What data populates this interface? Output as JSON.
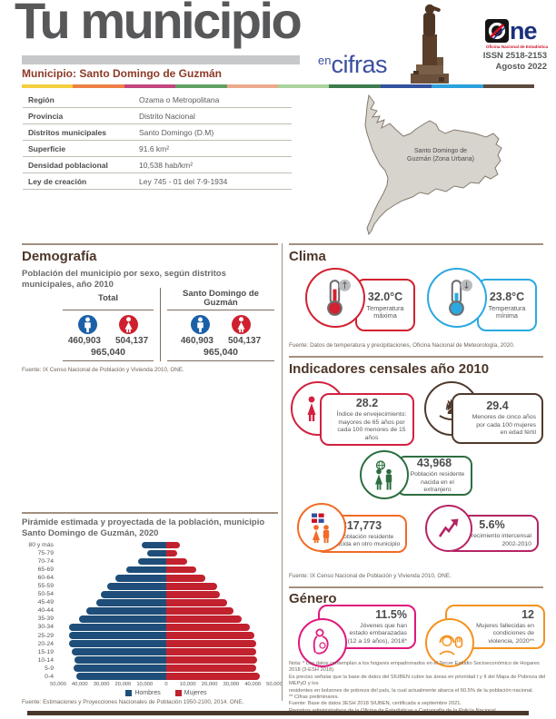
{
  "header": {
    "title": "Tu municipio",
    "subtitle_prefix": "en",
    "subtitle": "cifras",
    "municipio": "Municipio: Santo Domingo de Guzmán",
    "issn": "ISSN  2518-2153",
    "date": "Agosto 2022",
    "logo_text": "ne",
    "logo_caption": "Oficina Nacional de Estadística",
    "stripe_colors": [
      "#f3cf3e",
      "#ee7f45",
      "#c34680",
      "#609f63",
      "#ecaa8c",
      "#abd39d",
      "#3d7b4d",
      "#33519f",
      "#2ba1de",
      "#5c4a3e"
    ]
  },
  "info_table": {
    "rows": [
      {
        "label": "Región",
        "value": "Ozama o Metropolitana"
      },
      {
        "label": "Provincia",
        "value": "Distrito Nacional"
      },
      {
        "label": "Distritos municipales",
        "value": "Santo Domingo (D.M)"
      },
      {
        "label": "Superficie",
        "value": "91.6 km²"
      },
      {
        "label": "Densidad poblacional",
        "value": "10,538 hab/km²"
      },
      {
        "label": "Ley de creación",
        "value": "Ley 745 - 01 del 7-9-1934"
      }
    ]
  },
  "map": {
    "label_line1": "Santo Domingo de",
    "label_line2": "Guzmán (Zona Urbana)"
  },
  "demografia": {
    "title": "Demografía",
    "subtitle": "Población del municipio por sexo, según distritos municipales, año 2010",
    "columns": [
      {
        "header": "Total",
        "male": "460,903",
        "female": "504,137",
        "total": "965,040"
      },
      {
        "header": "Santo Domingo de Guzmán",
        "male": "460,903",
        "female": "504,137",
        "total": "965,040"
      }
    ],
    "male_color": "#1b5fa6",
    "female_color": "#cf2030",
    "fuente": "Fuente: IX Censo Nacional de Población y Vivienda 2010, ONE."
  },
  "clima": {
    "title": "Clima",
    "cards": [
      {
        "icon": "thermometer-up-icon",
        "value": "32.0°C",
        "label": "Temperatura máxima",
        "color": "#d22130"
      },
      {
        "icon": "thermometer-down-icon",
        "value": "23.8°C",
        "label": "Temperatura mínima",
        "color": "#2aa9e0"
      }
    ],
    "fuente": "Fuente: Datos de temperatura y precipitaciones, Oficina Nacional de Meteorología, 2020."
  },
  "indicadores": {
    "title": "Indicadores censales año 2010",
    "cards": [
      {
        "icon": "elderly-couple-icon",
        "value": "28.2",
        "label": "Índice de envejecimiento: mayores de 65 años por cada 100 menores de 15 años",
        "color": "#d22140"
      },
      {
        "icon": "rocking-horse-icon",
        "value": "29.4",
        "label": "Menores de cinco años por cada 100 mujeres en edad fértil",
        "color": "#503a2c"
      },
      {
        "icon": "people-globe-icon",
        "value": "43,968",
        "label": "Población residente nacida en el extranjero",
        "color": "#2c6e3f"
      },
      {
        "icon": "flag-people-icon",
        "value": "317,773",
        "label": "Población residente nacida en otro municipio",
        "color": "#f26b28"
      },
      {
        "icon": "growth-arrow-icon",
        "value": "5.6%",
        "label": "Crecimiento intercensal 2002-2010",
        "color": "#b52464"
      }
    ],
    "fuente": "Fuente: IX Censo Nacional de Población y Vivienda 2010, ONE."
  },
  "genero": {
    "title": "Género",
    "cards": [
      {
        "icon": "pregnant-woman-icon",
        "value": "11.5%",
        "label": "Jóvenes que han estado embarazadas (12 a 19 años), 2018*",
        "color": "#e0187c"
      },
      {
        "icon": "woman-stop-hand-icon",
        "value": "12",
        "label": "Mujeres fallecidas en condiciones de violencia, 2020**",
        "color": "#f5921e"
      }
    ],
    "notes": [
      "Nota: * Los datos contemplan a los hogares empadronados en el Tercer Estudio Socioeconómico de Hogares 2018 (3-ESH 2018).",
      "Es preciso señalar que la base de datos del SIUBEN cubre las áreas en prioridad I y II del Mapa de Pobreza del MEPyD y los",
      "residentes en bolsones de pobreza del país, la cual actualmente abarca el 60.5% de la población nacional.",
      "** Cifras preliminares.",
      "Fuente: Base de datos 3ESH 2018 SIUBEN, certificada a septiembre 2021.",
      "Registros administrativos de la Oficina de Estadísticas y Cartografía de la Policía Nacional."
    ]
  },
  "chart_data": {
    "type": "bar",
    "subtype": "population-pyramid",
    "title": "Pirámide estimada y proyectada de la población, municipio Santo Domingo de Guzmán, 2020",
    "categories": [
      "80 y más",
      "75-79",
      "70-74",
      "65-69",
      "60-64",
      "55-59",
      "50-54",
      "45-49",
      "40-44",
      "35-39",
      "30-34",
      "25-29",
      "20-24",
      "15-19",
      "10-14",
      "5-9",
      "0-4"
    ],
    "series": [
      {
        "name": "Hombres",
        "color": "#1e4e79",
        "values": [
          11500,
          9000,
          13000,
          18600,
          23600,
          27400,
          30400,
          32200,
          37100,
          40400,
          45100,
          45100,
          45100,
          43600,
          42400,
          42900,
          41400
        ]
      },
      {
        "name": "Mujeres",
        "color": "#c2212e",
        "values": [
          6200,
          5000,
          9500,
          14000,
          18000,
          23700,
          24800,
          28100,
          31000,
          35000,
          38800,
          40700,
          41800,
          41800,
          42200,
          41500,
          43300
        ]
      }
    ],
    "x_ticks": [
      "50,000",
      "40,000",
      "30,000",
      "20,000",
      "10,000",
      "0",
      "10,000",
      "20,000",
      "30,000",
      "40,000",
      "50,000"
    ],
    "xmax": 50000,
    "xlabel": "",
    "ylabel": "",
    "legend_position": "bottom",
    "fuente": "Fuente: Estimaciones y Proyecciones Nacionales de Población 1950-2100, 2014. ONE."
  }
}
